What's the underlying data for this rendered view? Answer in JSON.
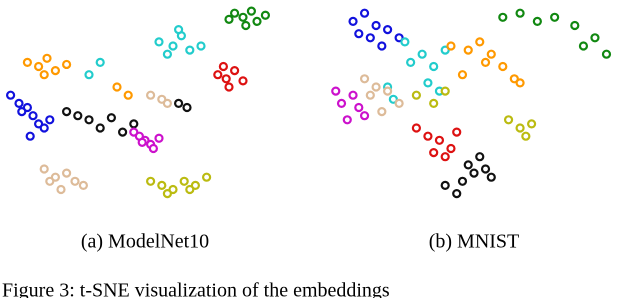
{
  "chart_data": [
    {
      "type": "scatter",
      "caption": "(a) ModelNet10",
      "xlim": [
        0,
        100
      ],
      "ylim": [
        0,
        100
      ],
      "series": [
        {
          "color": "#118811",
          "x": [
            82,
            85,
            88,
            90,
            93,
            86,
            80
          ],
          "y": [
            96,
            94,
            97,
            92,
            95,
            90,
            93
          ]
        },
        {
          "color": "#22cccc",
          "x": [
            55,
            60,
            63,
            66,
            58,
            62,
            70,
            34,
            30
          ],
          "y": [
            82,
            80,
            85,
            78,
            76,
            88,
            80,
            72,
            66
          ]
        },
        {
          "color": "#dd1111",
          "x": [
            76,
            79,
            82,
            80,
            85,
            78
          ],
          "y": [
            66,
            64,
            68,
            60,
            63,
            70
          ]
        },
        {
          "color": "#ff9900",
          "x": [
            8,
            12,
            15,
            18,
            22,
            14,
            40,
            44
          ],
          "y": [
            72,
            70,
            74,
            68,
            71,
            66,
            60,
            56
          ]
        },
        {
          "color": "#1111dd",
          "x": [
            2,
            5,
            8,
            10,
            12,
            6,
            14,
            16,
            9
          ],
          "y": [
            56,
            52,
            50,
            46,
            42,
            48,
            40,
            44,
            36
          ]
        },
        {
          "color": "#111111",
          "x": [
            22,
            26,
            30,
            34,
            38,
            62,
            65,
            42,
            46
          ],
          "y": [
            48,
            46,
            44,
            40,
            45,
            52,
            50,
            38,
            42
          ]
        },
        {
          "color": "#cc11cc",
          "x": [
            46,
            48,
            50,
            52,
            55,
            53,
            49
          ],
          "y": [
            38,
            36,
            34,
            32,
            35,
            30,
            33
          ]
        },
        {
          "color": "#ddbb99",
          "x": [
            14,
            18,
            22,
            25,
            28,
            20,
            16,
            52,
            56,
            58
          ],
          "y": [
            20,
            16,
            18,
            14,
            12,
            10,
            14,
            56,
            54,
            52
          ]
        },
        {
          "color": "#bbbb11",
          "x": [
            52,
            56,
            60,
            64,
            68,
            72,
            66,
            58
          ],
          "y": [
            14,
            12,
            10,
            14,
            12,
            16,
            10,
            8
          ]
        }
      ]
    },
    {
      "type": "scatter",
      "caption": "(b) MNIST",
      "xlim": [
        0,
        100
      ],
      "ylim": [
        0,
        100
      ],
      "series": [
        {
          "color": "#1111dd",
          "x": [
            8,
            12,
            16,
            20,
            24,
            14,
            18,
            10
          ],
          "y": [
            92,
            96,
            90,
            88,
            84,
            84,
            80,
            86
          ]
        },
        {
          "color": "#118811",
          "x": [
            60,
            66,
            72,
            78,
            85,
            92,
            96,
            88
          ],
          "y": [
            94,
            96,
            92,
            94,
            90,
            84,
            76,
            80
          ]
        },
        {
          "color": "#22cccc",
          "x": [
            28,
            32,
            36,
            40,
            26,
            20,
            22,
            34,
            38
          ],
          "y": [
            72,
            76,
            70,
            78,
            82,
            60,
            54,
            62,
            58
          ]
        },
        {
          "color": "#ff9900",
          "x": [
            42,
            48,
            52,
            56,
            60,
            46,
            54,
            64,
            66
          ],
          "y": [
            80,
            78,
            82,
            76,
            70,
            66,
            72,
            64,
            62
          ]
        },
        {
          "color": "#cc11cc",
          "x": [
            2,
            4,
            8,
            10,
            12,
            6
          ],
          "y": [
            58,
            52,
            56,
            50,
            46,
            44
          ]
        },
        {
          "color": "#ddbb99",
          "x": [
            12,
            16,
            20,
            24,
            18,
            14
          ],
          "y": [
            64,
            60,
            58,
            52,
            48,
            56
          ]
        },
        {
          "color": "#bbbb11",
          "x": [
            30,
            36,
            40,
            62,
            66,
            70,
            68
          ],
          "y": [
            56,
            52,
            58,
            44,
            40,
            42,
            36
          ]
        },
        {
          "color": "#dd1111",
          "x": [
            30,
            34,
            38,
            42,
            44,
            36,
            40
          ],
          "y": [
            40,
            36,
            34,
            30,
            38,
            28,
            26
          ]
        },
        {
          "color": "#111111",
          "x": [
            40,
            44,
            46,
            50,
            54,
            56,
            48,
            52
          ],
          "y": [
            12,
            8,
            14,
            18,
            20,
            16,
            22,
            26
          ]
        }
      ]
    }
  ],
  "figure_caption": "Figure 3: t-SNE visualization of the embeddings"
}
